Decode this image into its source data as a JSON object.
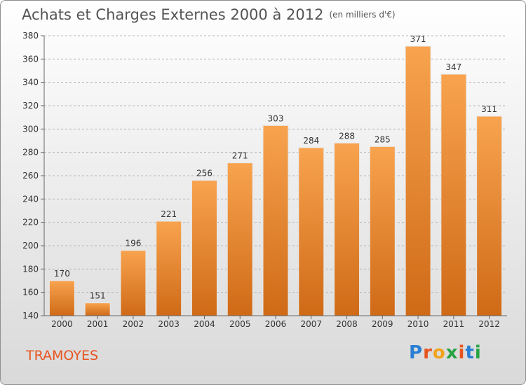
{
  "header": {
    "title": "Achats et Charges Externes 2000 à 2012",
    "unit": "(en milliers d'€)"
  },
  "footer": {
    "commune": "TRAMOYES",
    "logo": "Proxiti"
  },
  "colors": {
    "bar_top": "#f8a34f",
    "bar_bottom": "#cf6a17",
    "commune": "#e8541f"
  },
  "chart_data": {
    "type": "bar",
    "title": "Achats et Charges Externes 2000 à 2012",
    "subtitle": "(en milliers d'€)",
    "xlabel": "",
    "ylabel": "",
    "categories": [
      "2000",
      "2001",
      "2002",
      "2003",
      "2004",
      "2005",
      "2006",
      "2007",
      "2008",
      "2009",
      "2010",
      "2011",
      "2012"
    ],
    "values": [
      170,
      151,
      196,
      221,
      256,
      271,
      303,
      284,
      288,
      285,
      371,
      347,
      311
    ],
    "ylim": [
      140,
      380
    ],
    "yticks": [
      140,
      160,
      180,
      200,
      220,
      240,
      260,
      280,
      300,
      320,
      340,
      360,
      380
    ],
    "grid": true
  }
}
